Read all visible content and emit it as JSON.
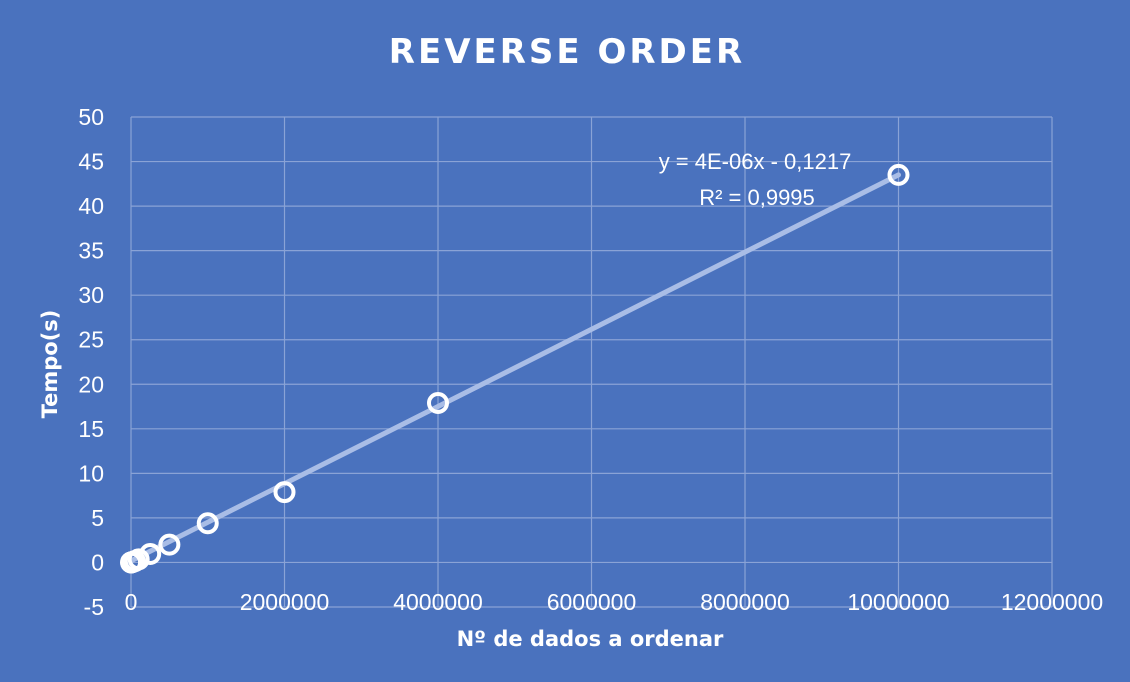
{
  "chart_data": {
    "type": "scatter",
    "title": "REVERSE ORDER",
    "xlabel": "Nº de dados a ordenar",
    "ylabel": "Tempo(s)",
    "xlim": [
      0,
      12000000
    ],
    "ylim": [
      -5,
      50
    ],
    "xticks": [
      "0",
      "2000000",
      "4000000",
      "6000000",
      "8000000",
      "10000000",
      "12000000"
    ],
    "yticks": [
      "-5",
      "0",
      "5",
      "10",
      "15",
      "20",
      "25",
      "30",
      "35",
      "40",
      "45",
      "50"
    ],
    "grid": true,
    "legend": "none",
    "series": [
      {
        "x": [
          1000,
          2000,
          5000,
          10000,
          20000,
          50000,
          100000,
          250000,
          500000,
          1000000,
          2000000,
          4000000,
          10000000
        ],
        "y": [
          0.0,
          0.0,
          0.01,
          0.02,
          0.05,
          0.15,
          0.35,
          0.95,
          2.0,
          4.4,
          7.9,
          17.9,
          43.5
        ]
      }
    ],
    "trendline": {
      "type": "linear",
      "slope": 4e-06,
      "intercept": -0.1217,
      "equation": "y = 4E-06x - 0,1217",
      "r_squared": "R² = 0,9995"
    },
    "colors": {
      "background": "#4a72be",
      "marker": "#ffffff",
      "trendline": "#a9bde6",
      "grid": "#8aa3d6"
    }
  }
}
